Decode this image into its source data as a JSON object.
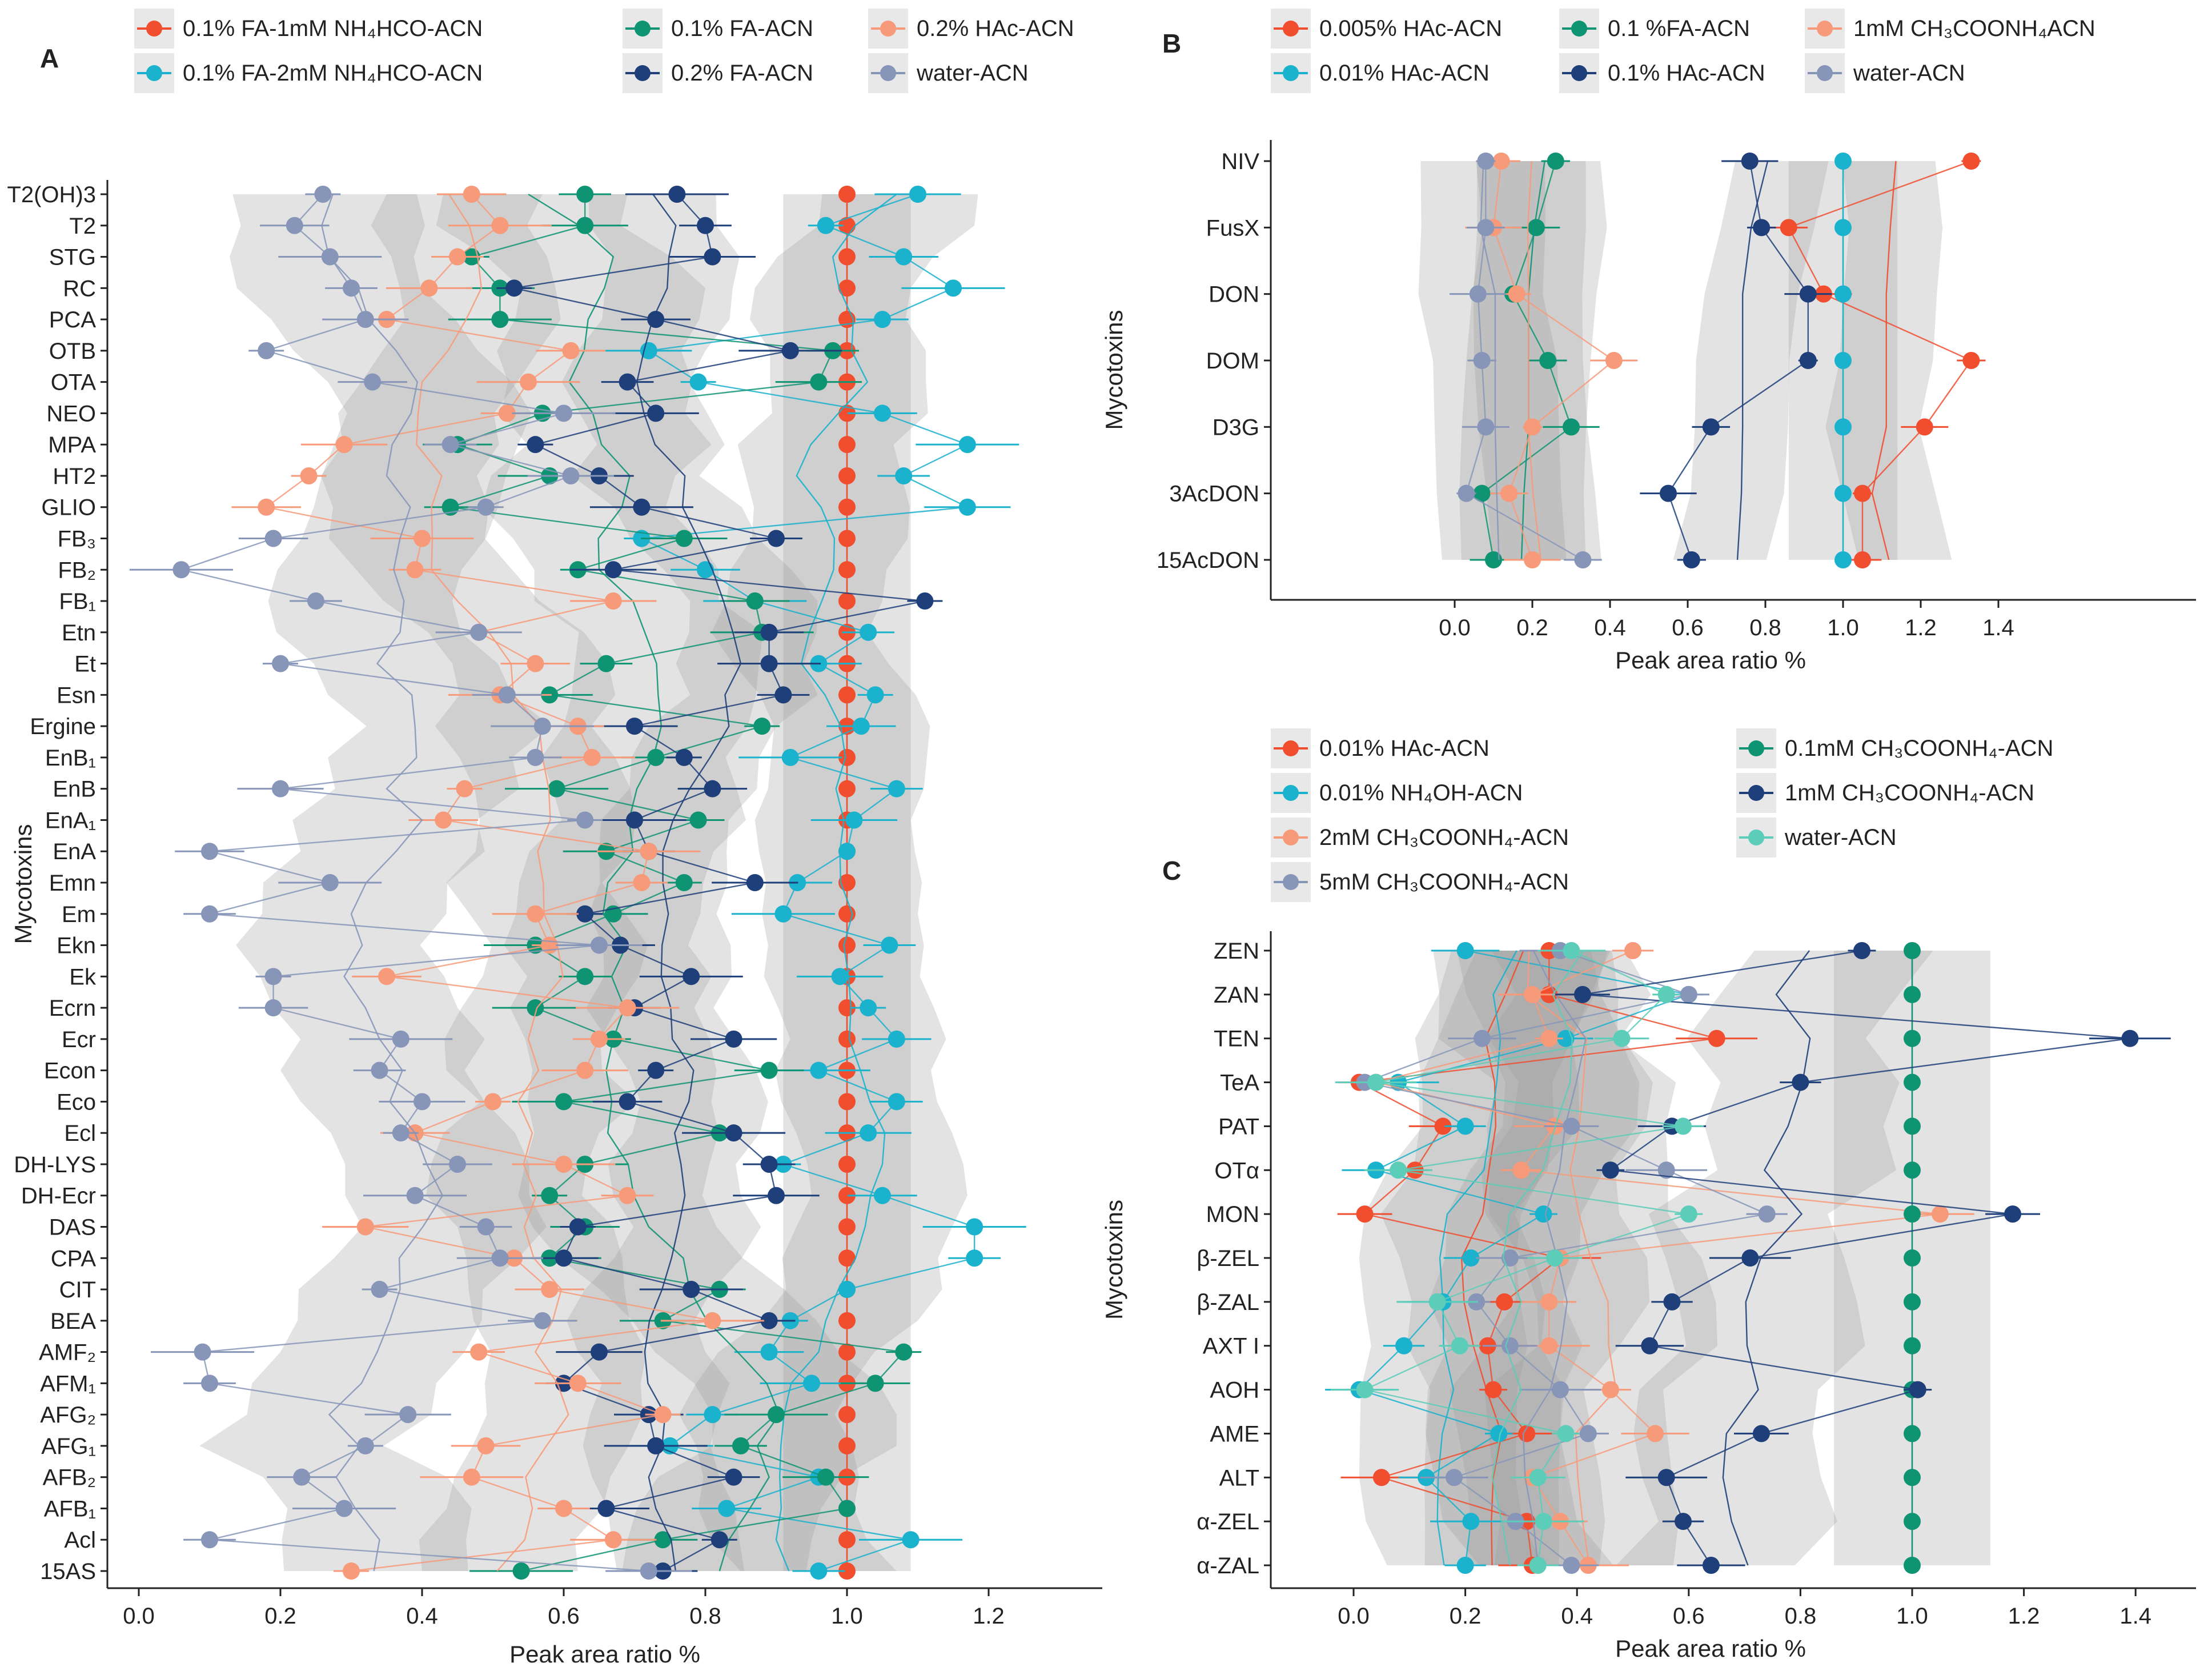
{
  "chart_data": [
    {
      "panel": "A",
      "type": "scatter",
      "xlabel": "Peak area ratio %",
      "ylabel": "Mycotoxins",
      "xlim": [
        0,
        1.28
      ],
      "xticks": [
        "0.0",
        "0.2",
        "0.4",
        "0.6",
        "0.8",
        "1.0",
        "1.2"
      ],
      "legend_position": "top",
      "categories": [
        "T2(OH)3",
        "T2",
        "STG",
        "RC",
        "PCA",
        "OTB",
        "OTA",
        "NEO",
        "MPA",
        "HT2",
        "GLIO",
        "FB₃",
        "FB₂",
        "FB₁",
        "Etn",
        "Et",
        "Esn",
        "Ergine",
        "EnB₁",
        "EnB",
        "EnA₁",
        "EnA",
        "Emn",
        "Em",
        "Ekn",
        "Ek",
        "Ecrn",
        "Ecr",
        "Econ",
        "Eco",
        "Ecl",
        "DH-LYS",
        "DH-Ecr",
        "DAS",
        "CPA",
        "CIT",
        "BEA",
        "AMF₂",
        "AFM₁",
        "AFG₂",
        "AFG₁",
        "AFB₂",
        "AFB₁",
        "Acl",
        "15AS"
      ],
      "series": [
        {
          "name": "0.1% FA-1mM NH₄HCO-ACN",
          "color": "#f04e2f",
          "values": [
            1,
            1,
            1,
            1,
            1,
            1,
            1,
            1,
            1,
            1,
            1,
            1,
            1,
            1,
            1,
            1,
            1,
            1,
            1,
            1,
            1,
            1,
            1,
            1,
            1,
            1,
            1,
            1,
            1,
            1,
            1,
            1,
            1,
            1,
            1,
            1,
            1,
            1,
            1,
            1,
            1,
            1,
            1,
            1,
            1
          ]
        },
        {
          "name": "0.1% FA-2mM NH₄HCO-ACN",
          "color": "#1ab2cc",
          "values": [
            1.1,
            0.97,
            1.08,
            1.15,
            1.05,
            0.72,
            0.79,
            1.05,
            1.17,
            1.08,
            1.17,
            0.71,
            0.8,
            0.87,
            1.03,
            0.96,
            1.04,
            1.02,
            0.92,
            1.07,
            1.01,
            1.0,
            0.93,
            0.91,
            1.06,
            0.99,
            1.03,
            1.07,
            0.96,
            1.07,
            1.03,
            0.91,
            1.05,
            1.18,
            1.18,
            1.0,
            0.92,
            0.89,
            0.95,
            0.81,
            0.75,
            0.96,
            0.83,
            1.09,
            0.96
          ]
        },
        {
          "name": "0.1% FA-ACN",
          "color": "#0f9473",
          "values": [
            0.63,
            0.63,
            0.47,
            0.51,
            0.51,
            0.98,
            0.96,
            0.57,
            0.45,
            0.58,
            0.44,
            0.77,
            0.62,
            0.87,
            0.88,
            0.66,
            0.58,
            0.88,
            0.73,
            0.59,
            0.79,
            0.66,
            0.77,
            0.67,
            0.56,
            0.63,
            0.56,
            0.67,
            0.89,
            0.6,
            0.82,
            0.63,
            0.58,
            0.63,
            0.58,
            0.82,
            0.74,
            1.08,
            1.04,
            0.9,
            0.85,
            0.97,
            1.0,
            0.74,
            0.54
          ]
        },
        {
          "name": "0.2% FA-ACN",
          "color": "#1f3f7a",
          "values": [
            0.76,
            0.8,
            0.81,
            0.53,
            0.73,
            0.92,
            0.69,
            0.73,
            0.56,
            0.65,
            0.71,
            0.9,
            0.67,
            1.11,
            0.89,
            0.89,
            0.91,
            0.7,
            0.77,
            0.81,
            0.7,
            0.72,
            0.87,
            0.63,
            0.68,
            0.78,
            0.7,
            0.84,
            0.73,
            0.69,
            0.84,
            0.89,
            0.9,
            0.62,
            0.6,
            0.78,
            0.89,
            0.65,
            0.6,
            0.72,
            0.73,
            0.84,
            0.66,
            0.82,
            0.74
          ]
        },
        {
          "name": "0.2% HAc-ACN",
          "color": "#f79a7a",
          "values": [
            0.47,
            0.51,
            0.45,
            0.41,
            0.35,
            0.61,
            0.55,
            0.52,
            0.29,
            0.24,
            0.18,
            0.4,
            0.39,
            0.67,
            0.48,
            0.56,
            0.51,
            0.62,
            0.64,
            0.46,
            0.43,
            0.72,
            0.71,
            0.56,
            0.58,
            0.35,
            0.69,
            0.65,
            0.63,
            0.5,
            0.39,
            0.6,
            0.69,
            0.32,
            0.53,
            0.58,
            0.81,
            0.48,
            0.62,
            0.74,
            0.49,
            0.47,
            0.6,
            0.67,
            0.3
          ]
        },
        {
          "name": "water-ACN",
          "color": "#8796b8",
          "values": [
            0.26,
            0.22,
            0.27,
            0.3,
            0.32,
            0.18,
            0.33,
            0.6,
            0.44,
            0.61,
            0.49,
            0.19,
            0.06,
            0.25,
            0.48,
            0.2,
            0.52,
            0.57,
            0.56,
            0.2,
            0.63,
            0.1,
            0.27,
            0.1,
            0.65,
            0.19,
            0.19,
            0.37,
            0.34,
            0.4,
            0.37,
            0.45,
            0.39,
            0.49,
            0.51,
            0.34,
            0.57,
            0.09,
            0.1,
            0.38,
            0.32,
            0.23,
            0.29,
            0.1,
            0.72
          ]
        }
      ]
    },
    {
      "panel": "B",
      "type": "scatter",
      "xlabel": "Peak area ratio %",
      "ylabel": "Mycotoxins",
      "xlim": [
        -0.45,
        1.9
      ],
      "xticks": [
        "0.0",
        "0.2",
        "0.4",
        "0.6",
        "0.8",
        "1.0",
        "1.2",
        "1.4"
      ],
      "legend_position": "top",
      "categories": [
        "NIV",
        "FusX",
        "DON",
        "DOM",
        "D3G",
        "3AcDON",
        "15AcDON"
      ],
      "series": [
        {
          "name": "0.005% HAc-ACN",
          "color": "#f04e2f",
          "values": [
            1.33,
            0.86,
            0.95,
            1.33,
            1.21,
            1.05,
            1.05
          ]
        },
        {
          "name": "0.01% HAc-ACN",
          "color": "#1ab2cc",
          "values": [
            1,
            1,
            1,
            1,
            1,
            1,
            1
          ]
        },
        {
          "name": "0.1 %FA-ACN",
          "color": "#0f9473",
          "values": [
            0.26,
            0.21,
            0.15,
            0.24,
            0.3,
            0.07,
            0.1
          ]
        },
        {
          "name": "0.1% HAc-ACN",
          "color": "#1f3f7a",
          "values": [
            0.76,
            0.79,
            0.91,
            0.91,
            0.66,
            0.55,
            0.61
          ]
        },
        {
          "name": "1mM CH₃COONH₄ACN",
          "color": "#f79a7a",
          "values": [
            0.12,
            0.1,
            0.16,
            0.41,
            0.2,
            0.14,
            0.2
          ]
        },
        {
          "name": "water-ACN",
          "color": "#8796b8",
          "values": [
            0.08,
            0.08,
            0.06,
            0.07,
            0.08,
            0.03,
            0.33
          ]
        }
      ]
    },
    {
      "panel": "C",
      "type": "scatter",
      "xlabel": "Peak area ratio %",
      "ylabel": "Mycotoxins",
      "xlim": [
        -0.15,
        1.5
      ],
      "xticks": [
        "0.0",
        "0.2",
        "0.4",
        "0.6",
        "0.8",
        "1.0",
        "1.2",
        "1.4"
      ],
      "legend_position": "top",
      "categories": [
        "ZEN",
        "ZAN",
        "TEN",
        "TeA",
        "PAT",
        "OTα",
        "MON",
        "β-ZEL",
        "β-ZAL",
        "AXT I",
        "AOH",
        "AME",
        "ALT",
        "α-ZEL",
        "α-ZAL"
      ],
      "series": [
        {
          "name": "0.01% HAc-ACN",
          "color": "#f04e2f",
          "values": [
            0.35,
            0.35,
            0.65,
            0.01,
            0.16,
            0.11,
            0.02,
            0.37,
            0.27,
            0.24,
            0.25,
            0.31,
            0.05,
            0.31,
            0.32
          ]
        },
        {
          "name": "0.01% NH₄OH-ACN",
          "color": "#1ab2cc",
          "values": [
            0.2,
            0.6,
            0.38,
            0.08,
            0.2,
            0.04,
            0.34,
            0.21,
            0.16,
            0.09,
            0.01,
            0.26,
            0.13,
            0.21,
            0.2
          ]
        },
        {
          "name": "2mM CH₃COONH₄-ACN",
          "color": "#f79a7a",
          "values": [
            0.5,
            0.32,
            0.35,
            0.04,
            0.36,
            0.3,
            1.05,
            0.37,
            0.35,
            0.35,
            0.46,
            0.54,
            0.32,
            0.37,
            0.42
          ]
        },
        {
          "name": "5mM CH₃COONH₄-ACN",
          "color": "#8796b8",
          "values": [
            0.37,
            0.6,
            0.23,
            0.02,
            0.39,
            0.56,
            0.74,
            0.28,
            0.22,
            0.28,
            0.37,
            0.42,
            0.18,
            0.29,
            0.39
          ]
        },
        {
          "name": "0.1mM CH₃COONH₄-ACN",
          "color": "#0f9473",
          "values": [
            1,
            1,
            1,
            1,
            1,
            1,
            1,
            1,
            1,
            1,
            1,
            1,
            1,
            1,
            1
          ]
        },
        {
          "name": "1mM CH₃COONH₄-ACN",
          "color": "#1f3f7a",
          "values": [
            0.91,
            0.41,
            1.39,
            0.8,
            0.57,
            0.46,
            1.18,
            0.71,
            0.57,
            0.53,
            1.01,
            0.73,
            0.56,
            0.59,
            0.64
          ]
        },
        {
          "name": "water-ACN",
          "color": "#5ccdb8",
          "values": [
            0.39,
            0.56,
            0.48,
            0.04,
            0.59,
            0.08,
            0.6,
            0.36,
            0.15,
            0.19,
            0.02,
            0.38,
            0.33,
            0.34,
            0.33
          ]
        }
      ]
    }
  ]
}
